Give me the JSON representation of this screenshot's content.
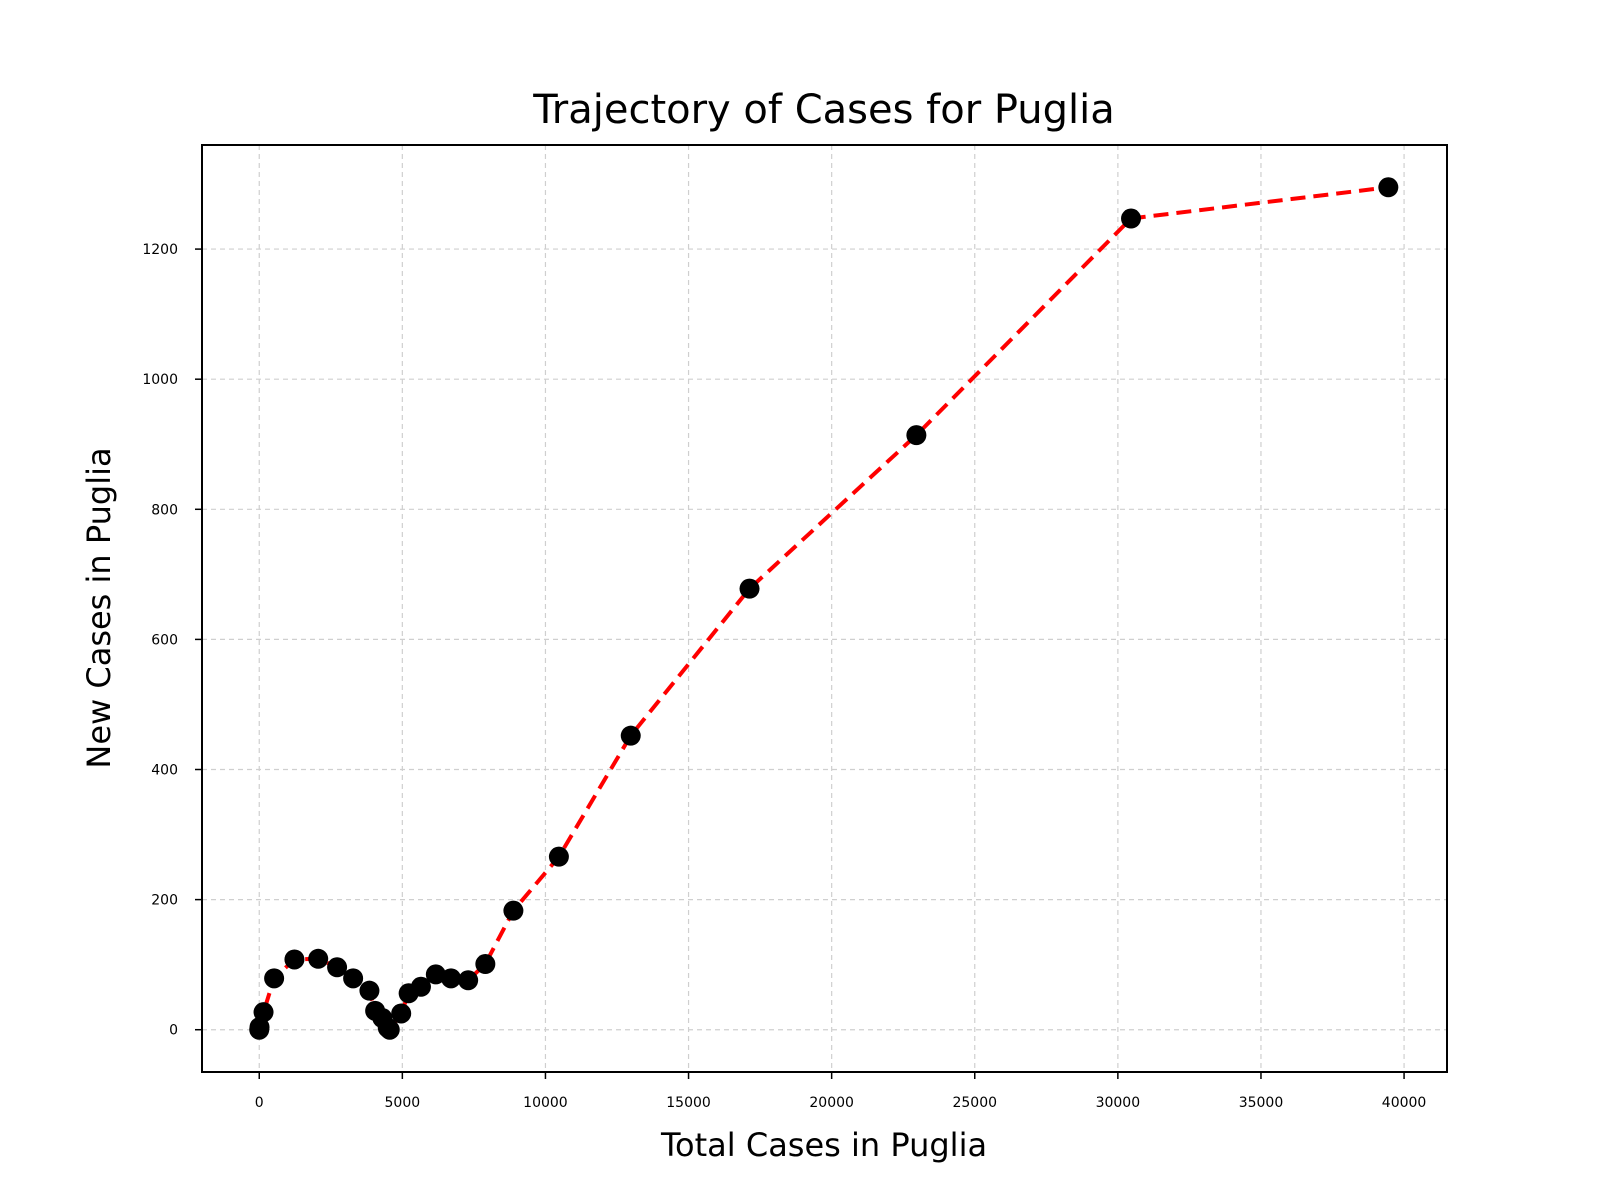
{
  "chart_data": {
    "type": "line",
    "title": "Trajectory of Cases for Puglia",
    "xlabel": "Total Cases in Puglia",
    "ylabel": "New Cases in Puglia",
    "xlim": [
      -2000,
      41500
    ],
    "ylim": [
      -65,
      1360
    ],
    "xticks": [
      0,
      5000,
      10000,
      15000,
      20000,
      25000,
      30000,
      35000,
      40000
    ],
    "xtick_labels": [
      "0",
      "5000",
      "10000",
      "15000",
      "20000",
      "25000",
      "30000",
      "35000",
      "40000"
    ],
    "yticks": [
      0,
      200,
      400,
      600,
      800,
      1000,
      1200
    ],
    "ytick_labels": [
      "0",
      "200",
      "400",
      "600",
      "800",
      "1000",
      "1200"
    ],
    "grid": true,
    "line_color": "#ff0000",
    "line_style": "dashed",
    "marker_color": "#000000",
    "marker": "circle",
    "series": [
      {
        "x": [
          0,
          10,
          150,
          520,
          1230,
          2060,
          2720,
          3280,
          3850,
          4050,
          4300,
          4490,
          4560,
          4960,
          5220,
          5650,
          6170,
          6700,
          7300,
          7900,
          8880,
          10470,
          12980,
          17130,
          22960,
          30460,
          39450
        ],
        "y": [
          0,
          4,
          27,
          79,
          108,
          109,
          96,
          79,
          60,
          29,
          18,
          3,
          0,
          25,
          56,
          66,
          85,
          79,
          76,
          101,
          183,
          266,
          452,
          678,
          914,
          1247,
          1295
        ]
      }
    ]
  }
}
